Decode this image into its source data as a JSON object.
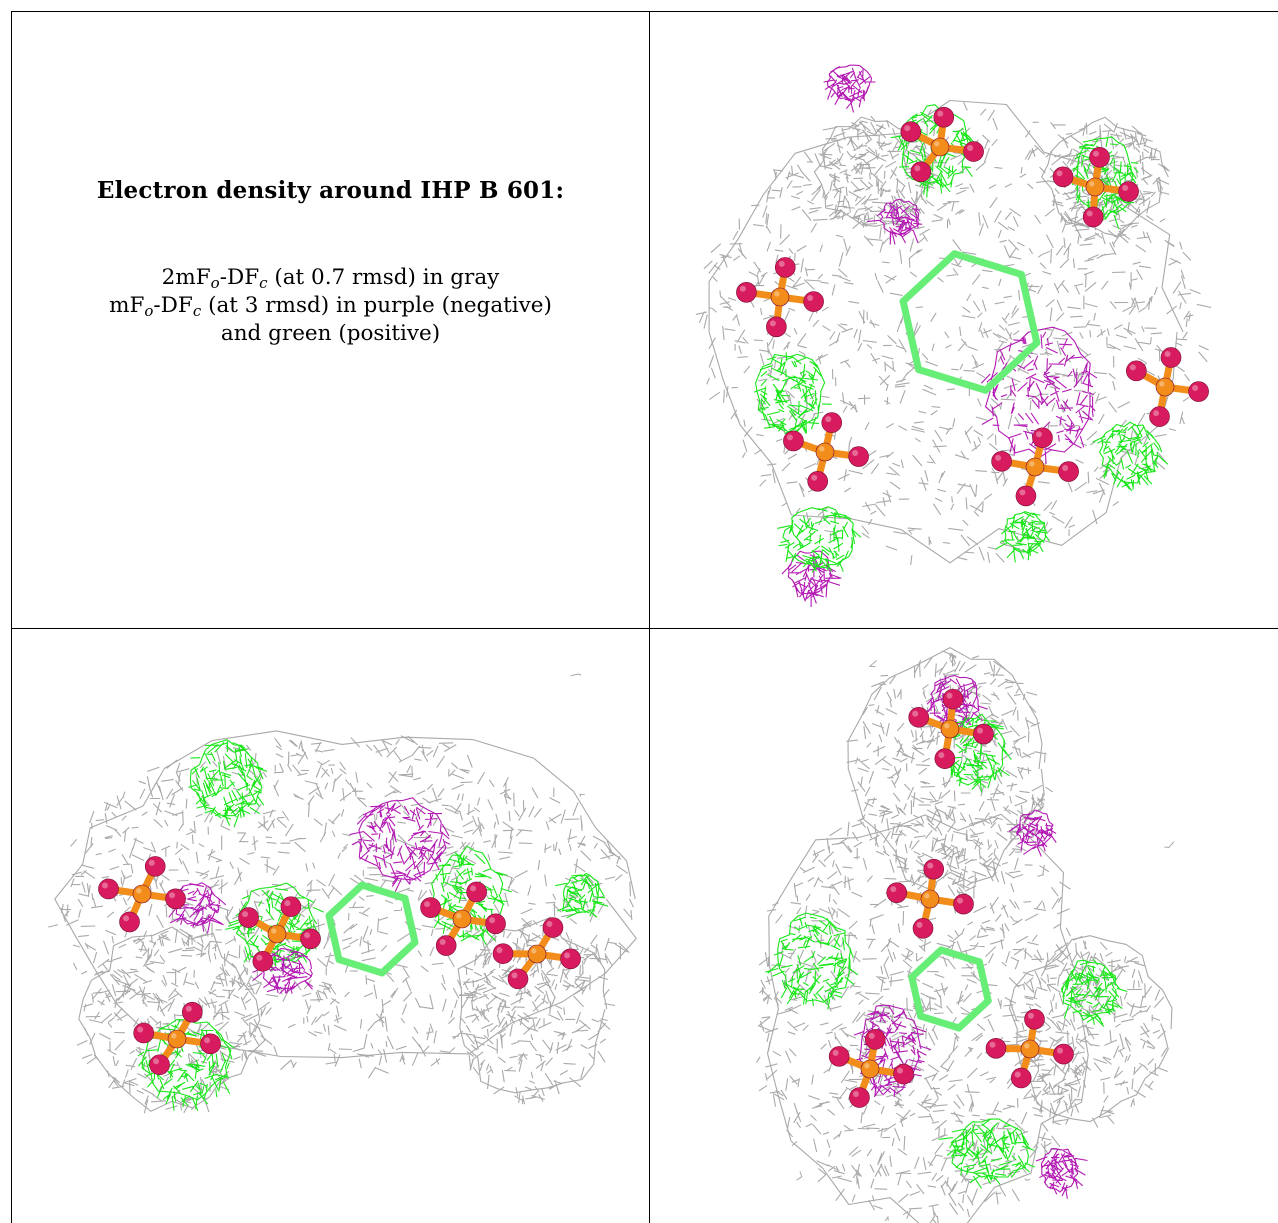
{
  "caption": {
    "title": "Electron density around IHP B 601:",
    "line1_a": "2mF",
    "line1_sub1": "o",
    "line1_b": "-DF",
    "line1_sub2": "c",
    "line1_c": " (at 0.7 rmsd) in gray",
    "line2_a": "mF",
    "line2_sub1": "o",
    "line2_b": "-DF",
    "line2_sub2": "c",
    "line2_c": " (at 3 rmsd) in purple (negative)",
    "line3": "and green (positive)"
  },
  "colors": {
    "mesh_gray": "#a9a9a9",
    "mesh_green": "#19e619",
    "mesh_purple": "#b31ab3",
    "carbon_green": "#66ee77",
    "oxygen_red": "#d81b5f",
    "phosphorus_orange": "#f28c1a",
    "grid_line": "#000000"
  },
  "panels": [
    {
      "view": "top-right",
      "structure": "IHP molecule with electron density mesh"
    },
    {
      "view": "bottom-left",
      "structure": "IHP molecule with electron density mesh"
    },
    {
      "view": "bottom-right",
      "structure": "IHP molecule with electron density mesh"
    }
  ]
}
